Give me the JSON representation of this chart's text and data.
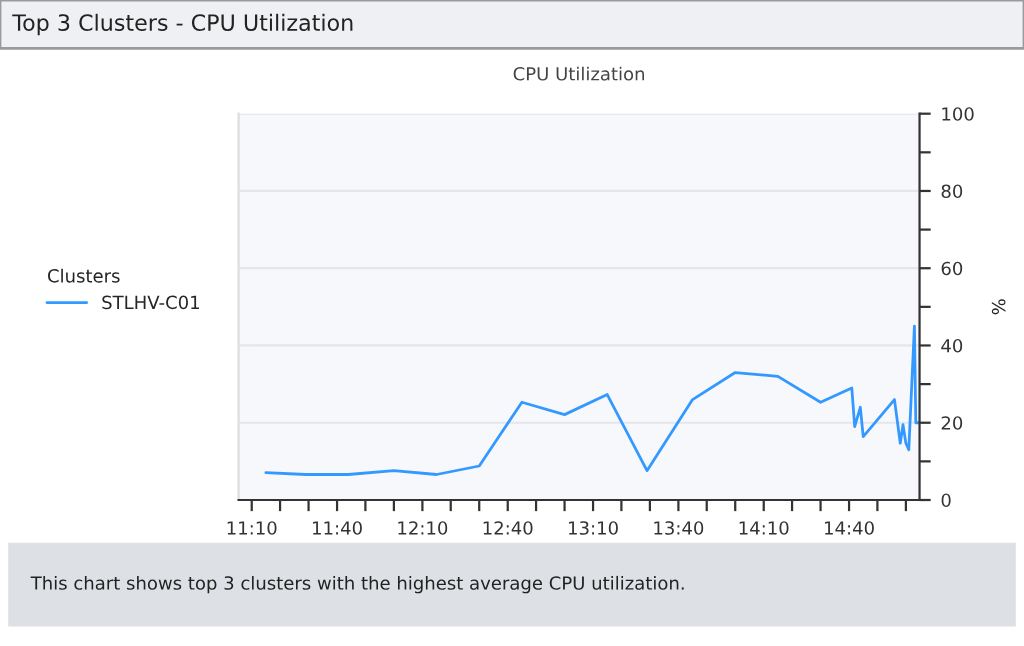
{
  "chart_data": {
    "type": "line",
    "title": "Top 3 Clusters - CPU Utilization",
    "subtitle": "CPU Utilization",
    "ylabel": "%",
    "legend_title": "Clusters",
    "x": [
      11.25,
      11.483,
      11.733,
      12.0,
      12.25,
      12.5,
      12.75,
      13.0,
      13.25,
      13.483,
      13.75,
      14.0,
      14.25,
      14.5,
      14.683,
      14.7,
      14.733,
      14.75,
      14.933,
      14.967,
      14.983,
      15.0,
      15.017,
      15.05,
      15.058,
      15.075
    ],
    "series": [
      {
        "name": "STLHV-C01",
        "color": "#3399ff",
        "values": [
          7.1,
          6.6,
          6.6,
          7.6,
          6.6,
          8.8,
          25.3,
          22.1,
          27.3,
          7.6,
          26,
          33,
          32,
          25.3,
          29,
          19,
          24,
          16.4,
          26,
          14.7,
          19.5,
          14.7,
          13,
          45,
          20,
          20
        ]
      }
    ],
    "xlim": [
      11.09,
      15.08
    ],
    "xticks": [
      {
        "value": 11.167,
        "label": "11:10"
      },
      {
        "value": 11.333,
        "label": null
      },
      {
        "value": 11.5,
        "label": null
      },
      {
        "value": 11.667,
        "label": "11:40"
      },
      {
        "value": 11.833,
        "label": null
      },
      {
        "value": 12.0,
        "label": null
      },
      {
        "value": 12.167,
        "label": "12:10"
      },
      {
        "value": 12.333,
        "label": null
      },
      {
        "value": 12.5,
        "label": null
      },
      {
        "value": 12.667,
        "label": "12:40"
      },
      {
        "value": 12.833,
        "label": null
      },
      {
        "value": 13.0,
        "label": null
      },
      {
        "value": 13.167,
        "label": "13:10"
      },
      {
        "value": 13.333,
        "label": null
      },
      {
        "value": 13.5,
        "label": null
      },
      {
        "value": 13.667,
        "label": "13:40"
      },
      {
        "value": 13.833,
        "label": null
      },
      {
        "value": 14.0,
        "label": null
      },
      {
        "value": 14.167,
        "label": "14:10"
      },
      {
        "value": 14.333,
        "label": null
      },
      {
        "value": 14.5,
        "label": null
      },
      {
        "value": 14.667,
        "label": "14:40"
      },
      {
        "value": 14.833,
        "label": null
      },
      {
        "value": 15.0,
        "label": null
      }
    ],
    "ylim": [
      0,
      100
    ],
    "yticks": [
      0,
      {
        "value": 10,
        "label": null
      },
      20,
      {
        "value": 30,
        "label": null
      },
      40,
      {
        "value": 50,
        "label": null
      },
      60,
      {
        "value": 70,
        "label": null
      },
      80,
      {
        "value": 90,
        "label": null
      },
      100
    ],
    "grid": "y",
    "legend": "left",
    "marker": "none",
    "line_style": "solid",
    "annotations": [
      "This chart shows top 3 clusters with the highest average CPU utilization."
    ]
  }
}
